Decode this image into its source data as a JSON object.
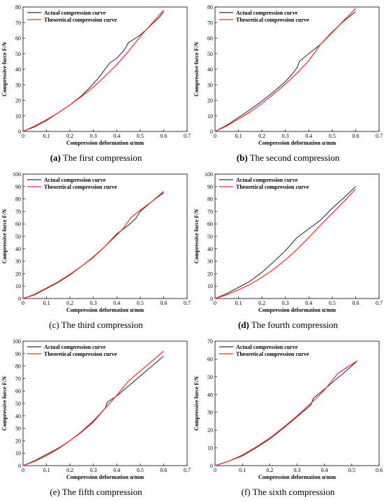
{
  "chart_data": [
    {
      "type": "line",
      "caption_letter": "(a)",
      "caption_text": "The first compression",
      "xlabel": "Compression deformation α/mm",
      "ylabel": "Compressive force F/N",
      "xlim": [
        0,
        0.7
      ],
      "ylim": [
        0,
        80
      ],
      "xticks": [
        "0",
        "0.1",
        "0.2",
        "0.3",
        "0.4",
        "0.5",
        "0.6",
        "0.7"
      ],
      "yticks": [
        "0",
        "10",
        "20",
        "30",
        "40",
        "50",
        "60",
        "70",
        "80"
      ],
      "legend_position": "top-left",
      "series": [
        {
          "name": "Actual compression curve",
          "color": "#333333",
          "x": [
            0,
            0.05,
            0.1,
            0.15,
            0.2,
            0.25,
            0.29,
            0.32,
            0.35,
            0.37,
            0.4,
            0.43,
            0.45,
            0.47,
            0.5,
            0.53,
            0.55,
            0.58,
            0.6
          ],
          "y": [
            0,
            3,
            7,
            12,
            17,
            23,
            29,
            34,
            40,
            44,
            47,
            52,
            57,
            59,
            62,
            66,
            69,
            73,
            77
          ]
        },
        {
          "name": "Theoretical compression curve",
          "color": "#ff2a2a",
          "x": [
            0,
            0.05,
            0.1,
            0.15,
            0.2,
            0.25,
            0.3,
            0.35,
            0.4,
            0.45,
            0.5,
            0.55,
            0.6
          ],
          "y": [
            0,
            3.5,
            7.5,
            12,
            17,
            22.5,
            28.5,
            35.5,
            43,
            51.5,
            61,
            69.5,
            78
          ]
        }
      ]
    },
    {
      "type": "line",
      "caption_letter": "(b)",
      "caption_text": "The second compression",
      "xlabel": "Compression deformation α/mm",
      "ylabel": "Compressive force F/N",
      "xlim": [
        0,
        0.7
      ],
      "ylim": [
        0,
        80
      ],
      "xticks": [
        "0",
        "0.1",
        "0.2",
        "0.3",
        "0.4",
        "0.5",
        "0.6",
        "0.7"
      ],
      "yticks": [
        "0",
        "10",
        "20",
        "30",
        "40",
        "50",
        "60",
        "70",
        "80"
      ],
      "legend_position": "top-left",
      "series": [
        {
          "name": "Actual compression curve",
          "color": "#333333",
          "x": [
            0,
            0.05,
            0.1,
            0.15,
            0.2,
            0.25,
            0.3,
            0.33,
            0.35,
            0.36,
            0.4,
            0.45,
            0.5,
            0.55,
            0.6
          ],
          "y": [
            0,
            4,
            9,
            14,
            19.5,
            25.5,
            32,
            37,
            41,
            45,
            50,
            56,
            64,
            71,
            77
          ]
        },
        {
          "name": "Theoretical compression curve",
          "color": "#ff2a2a",
          "x": [
            0,
            0.05,
            0.1,
            0.15,
            0.2,
            0.25,
            0.3,
            0.35,
            0.4,
            0.45,
            0.5,
            0.55,
            0.6
          ],
          "y": [
            0,
            3.5,
            8,
            12.5,
            18,
            24,
            30.5,
            37.5,
            45.5,
            56,
            63.5,
            71.5,
            79
          ]
        }
      ]
    },
    {
      "type": "line",
      "caption_letter": "(c)",
      "caption_text": "The third compression",
      "xlabel": "Compression deformation α/mm",
      "ylabel": "Compressive force F/N",
      "xlim": [
        0,
        0.7
      ],
      "ylim": [
        0,
        100
      ],
      "xticks": [
        "0",
        "0.1",
        "0.2",
        "0.3",
        "0.4",
        "0.5",
        "0.6",
        "0.7"
      ],
      "yticks": [
        "0",
        "10",
        "20",
        "30",
        "40",
        "50",
        "60",
        "70",
        "80",
        "90",
        "100"
      ],
      "legend_position": "top-left",
      "series": [
        {
          "name": "Actual compression curve",
          "color": "#333333",
          "x": [
            0,
            0.05,
            0.1,
            0.15,
            0.2,
            0.25,
            0.3,
            0.35,
            0.36,
            0.4,
            0.45,
            0.48,
            0.5,
            0.55,
            0.6
          ],
          "y": [
            0,
            3,
            8,
            13,
            19,
            26,
            33,
            42,
            44,
            52,
            59,
            64,
            70,
            78,
            86
          ]
        },
        {
          "name": "Theoretical compression curve",
          "color": "#ff2a2a",
          "x": [
            0,
            0.05,
            0.1,
            0.15,
            0.2,
            0.25,
            0.3,
            0.35,
            0.4,
            0.43,
            0.46,
            0.5,
            0.55,
            0.6
          ],
          "y": [
            0,
            3.5,
            8.5,
            13.5,
            19.5,
            26,
            33.5,
            42,
            51,
            57,
            65,
            71,
            78,
            85
          ]
        }
      ]
    },
    {
      "type": "line",
      "caption_letter": "(d)",
      "caption_text": "The fourth compression",
      "xlabel": "Compression deformation α/mm",
      "ylabel": "Compressive force F/N",
      "xlim": [
        0,
        0.7
      ],
      "ylim": [
        0,
        100
      ],
      "xticks": [
        "0",
        "0.1",
        "0.2",
        "0.3",
        "0.4",
        "0.5",
        "0.6",
        "0.7"
      ],
      "yticks": [
        "0",
        "10",
        "20",
        "30",
        "40",
        "50",
        "60",
        "70",
        "80",
        "90",
        "100"
      ],
      "legend_position": "top-left",
      "series": [
        {
          "name": "Actual compression curve",
          "color": "#333333",
          "x": [
            0,
            0.05,
            0.1,
            0.15,
            0.2,
            0.25,
            0.3,
            0.35,
            0.4,
            0.45,
            0.5,
            0.55,
            0.6
          ],
          "y": [
            0,
            4,
            9,
            14,
            21,
            29.5,
            38.5,
            49,
            56,
            63,
            72.5,
            81,
            90
          ]
        },
        {
          "name": "Theoretical compression curve",
          "color": "#ff2a2a",
          "x": [
            0,
            0.05,
            0.1,
            0.15,
            0.2,
            0.25,
            0.3,
            0.35,
            0.4,
            0.45,
            0.5,
            0.55,
            0.6
          ],
          "y": [
            0,
            3,
            7,
            11.5,
            17,
            23.5,
            31,
            39.5,
            49,
            59,
            68.5,
            78,
            88
          ]
        }
      ]
    },
    {
      "type": "line",
      "caption_letter": "(e)",
      "caption_text": "The fifth compression",
      "xlabel": "Compression deformation α/mm",
      "ylabel": "Compressive force F/N",
      "xlim": [
        0,
        0.7
      ],
      "ylim": [
        0,
        100
      ],
      "xticks": [
        "0",
        "0.1",
        "0.2",
        "0.3",
        "0.4",
        "0.5",
        "0.6",
        "0.7"
      ],
      "yticks": [
        "0",
        "10",
        "20",
        "30",
        "40",
        "50",
        "60",
        "70",
        "80",
        "90",
        "100"
      ],
      "legend_position": "top-left",
      "series": [
        {
          "name": "Actual compression curve",
          "color": "#333333",
          "x": [
            0,
            0.05,
            0.1,
            0.15,
            0.2,
            0.25,
            0.3,
            0.35,
            0.36,
            0.4,
            0.45,
            0.5,
            0.55,
            0.6
          ],
          "y": [
            0,
            4,
            9,
            14,
            20,
            27,
            35,
            46,
            51,
            56,
            64,
            72,
            80,
            88
          ]
        },
        {
          "name": "Theoretical compression curve",
          "color": "#ff2a2a",
          "x": [
            0,
            0.05,
            0.1,
            0.15,
            0.2,
            0.25,
            0.3,
            0.35,
            0.4,
            0.45,
            0.5,
            0.55,
            0.6
          ],
          "y": [
            0,
            3.5,
            8,
            13.5,
            20,
            27.5,
            36,
            46,
            56.5,
            68,
            76,
            84,
            92
          ]
        }
      ]
    },
    {
      "type": "line",
      "caption_letter": "(f)",
      "caption_text": "The sixth compression",
      "xlabel": "Compression deformation α/mm",
      "ylabel": "Compressive force F/N",
      "xlim": [
        0,
        0.6
      ],
      "ylim": [
        0,
        70
      ],
      "xticks": [
        "0",
        "0.1",
        "0.2",
        "0.3",
        "0.4",
        "0.5",
        "0.6"
      ],
      "yticks": [
        "0",
        "10",
        "20",
        "30",
        "40",
        "50",
        "60",
        "70"
      ],
      "legend_position": "top-left",
      "series": [
        {
          "name": "Actual compression curve",
          "color": "#333333",
          "x": [
            0,
            0.05,
            0.1,
            0.15,
            0.2,
            0.25,
            0.3,
            0.35,
            0.36,
            0.4,
            0.45,
            0.5,
            0.52
          ],
          "y": [
            0,
            2.5,
            5.5,
            10,
            15,
            21,
            27.5,
            34,
            38,
            43,
            49.5,
            56,
            59
          ]
        },
        {
          "name": "Theoretical compression curve",
          "color": "#ff2a2a",
          "x": [
            0,
            0.05,
            0.1,
            0.15,
            0.2,
            0.25,
            0.3,
            0.35,
            0.4,
            0.45,
            0.5,
            0.52
          ],
          "y": [
            0,
            2.5,
            6,
            10.5,
            15.5,
            21.5,
            28,
            35,
            42.5,
            52,
            57,
            59
          ]
        }
      ]
    }
  ]
}
